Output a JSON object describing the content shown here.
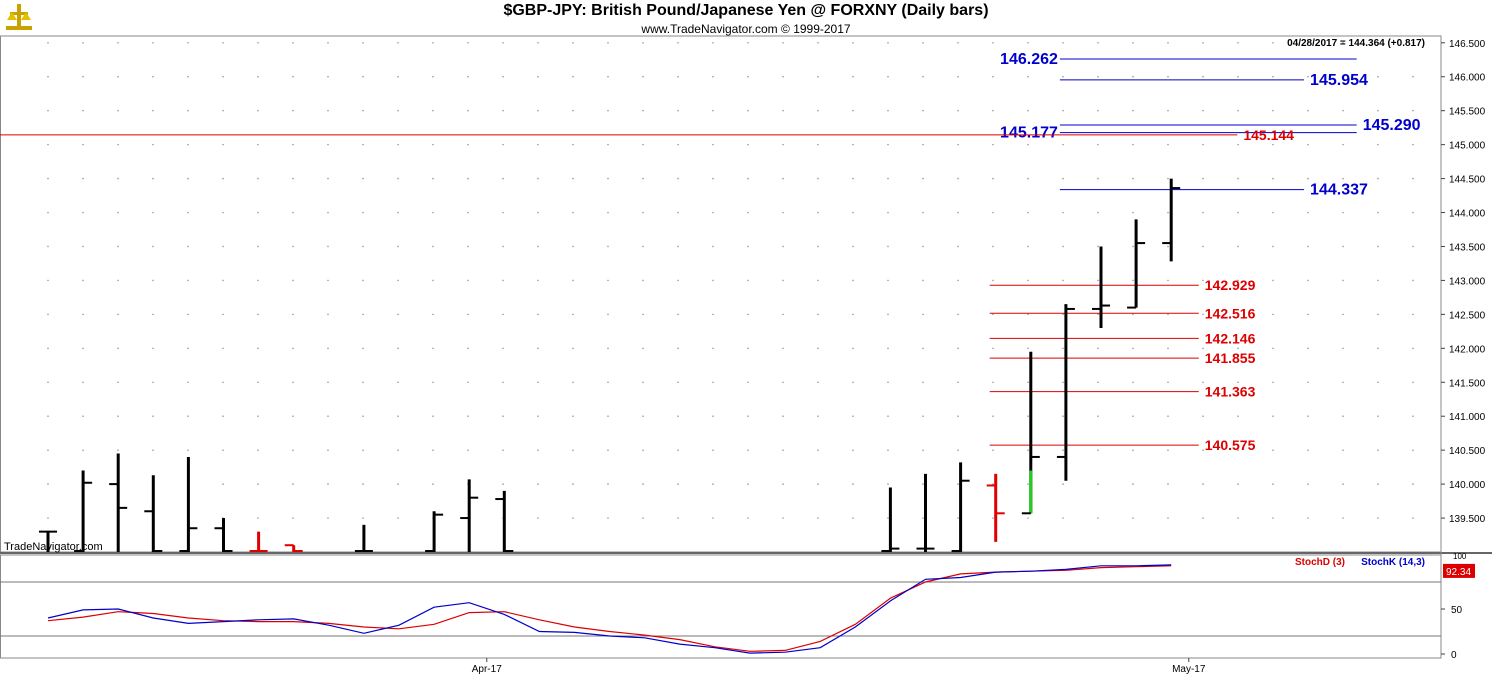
{
  "header": {
    "title": "$GBP-JPY:  British Pound/Japanese Yen @ FORXNY  (Daily bars)",
    "subtitle": "www.TradeNavigator.com © 1999-2017"
  },
  "watermark": "TradeNavigator.com",
  "last_quote": "04/28/2017 = 144.364 (+0.817)",
  "colors": {
    "bar": "#000000",
    "down_bar": "#e00000",
    "up_bar": "#22cc22",
    "resistance": "#0000cc",
    "support": "#dd0000",
    "stochD": "#dd0000",
    "stochK": "#0000cc"
  },
  "chart_data": [
    {
      "type": "ohlc",
      "title": "$GBP-JPY:  British Pound/Japanese Yen @ FORXNY  (Daily bars)",
      "ylim": [
        139.0,
        146.6
      ],
      "y_ticks": [
        "139.500",
        "140.000",
        "140.500",
        "141.000",
        "141.500",
        "142.000",
        "142.500",
        "143.000",
        "143.500",
        "144.000",
        "144.500",
        "145.000",
        "145.500",
        "146.000",
        "146.500"
      ],
      "x_ticks": [
        {
          "label": "Apr-17",
          "index": 12.5
        },
        {
          "label": "May-17",
          "index": 32.5
        }
      ],
      "bars": [
        {
          "i": 0,
          "o": 139.3,
          "h": 139.3,
          "l": 139.0,
          "c": 139.3,
          "color": "bar"
        },
        {
          "i": 1,
          "o": 139.0,
          "h": 140.2,
          "l": 139.0,
          "c": 140.02,
          "color": "bar"
        },
        {
          "i": 2,
          "o": 140.0,
          "h": 140.45,
          "l": 139.0,
          "c": 139.65,
          "color": "bar"
        },
        {
          "i": 3,
          "o": 139.6,
          "h": 140.13,
          "l": 139.0,
          "c": 139.0,
          "color": "bar"
        },
        {
          "i": 4,
          "o": 139.0,
          "h": 140.4,
          "l": 139.0,
          "c": 139.35,
          "color": "bar"
        },
        {
          "i": 5,
          "o": 139.35,
          "h": 139.5,
          "l": 139.0,
          "c": 139.0,
          "color": "bar"
        },
        {
          "i": 6,
          "o": 139.0,
          "h": 139.3,
          "l": 139.0,
          "c": 139.0,
          "color": "down_bar"
        },
        {
          "i": 7,
          "o": 139.1,
          "h": 139.1,
          "l": 139.0,
          "c": 139.0,
          "color": "down_bar"
        },
        {
          "i": 9,
          "o": 139.0,
          "h": 139.4,
          "l": 139.0,
          "c": 139.0,
          "color": "bar"
        },
        {
          "i": 11,
          "o": 139.0,
          "h": 139.6,
          "l": 139.0,
          "c": 139.55,
          "color": "bar"
        },
        {
          "i": 12,
          "o": 139.5,
          "h": 140.07,
          "l": 139.0,
          "c": 139.8,
          "color": "bar"
        },
        {
          "i": 13,
          "o": 139.78,
          "h": 139.9,
          "l": 139.0,
          "c": 139.0,
          "color": "bar"
        },
        {
          "i": 24,
          "o": 139.0,
          "h": 139.95,
          "l": 139.0,
          "c": 139.05,
          "color": "bar"
        },
        {
          "i": 25,
          "o": 139.05,
          "h": 140.15,
          "l": 139.0,
          "c": 139.05,
          "color": "bar"
        },
        {
          "i": 26,
          "o": 139.0,
          "h": 140.32,
          "l": 139.0,
          "c": 140.05,
          "color": "bar"
        },
        {
          "i": 27,
          "o": 139.98,
          "h": 140.15,
          "l": 139.15,
          "c": 139.57,
          "color": "down_bar"
        },
        {
          "i": 28,
          "o": 139.57,
          "h": 141.95,
          "l": 139.57,
          "c": 140.4,
          "color": "bar",
          "up_segment": [
            139.57,
            140.2
          ]
        },
        {
          "i": 29,
          "o": 140.4,
          "h": 142.65,
          "l": 140.05,
          "c": 142.58,
          "color": "bar"
        },
        {
          "i": 30,
          "o": 142.58,
          "h": 143.5,
          "l": 142.3,
          "c": 142.63,
          "color": "bar"
        },
        {
          "i": 31,
          "o": 142.6,
          "h": 143.9,
          "l": 142.6,
          "c": 143.55,
          "color": "bar"
        },
        {
          "i": 32,
          "o": 143.55,
          "h": 144.5,
          "l": 143.28,
          "c": 144.36,
          "color": "bar"
        }
      ],
      "levels": [
        {
          "value": 146.262,
          "label": "146.262",
          "color": "resistance",
          "label_side": "left",
          "from": 29,
          "to": 37
        },
        {
          "value": 145.954,
          "label": "145.954",
          "color": "resistance",
          "label_side": "right",
          "from": 29,
          "to": 35.5
        },
        {
          "value": 145.29,
          "label": "145.290",
          "color": "resistance",
          "label_side": "right",
          "from": 29,
          "to": 37
        },
        {
          "value": 145.177,
          "label": "145.177",
          "color": "resistance",
          "label_side": "left",
          "from": 29,
          "to": 37
        },
        {
          "value": 145.144,
          "label": "145.144",
          "color": "support",
          "label_side": "right",
          "from": -1,
          "to": 33.6
        },
        {
          "value": 144.337,
          "label": "144.337",
          "color": "resistance",
          "label_side": "right",
          "from": 29,
          "to": 35.5
        },
        {
          "value": 142.929,
          "label": "142.929",
          "color": "support",
          "label_side": "right",
          "from": 27,
          "to": 32.5
        },
        {
          "value": 142.516,
          "label": "142.516",
          "color": "support",
          "label_side": "right",
          "from": 27,
          "to": 32.5
        },
        {
          "value": 142.146,
          "label": "142.146",
          "color": "support",
          "label_side": "right",
          "from": 27,
          "to": 32.5
        },
        {
          "value": 141.855,
          "label": "141.855",
          "color": "support",
          "label_side": "right",
          "from": 27,
          "to": 32.5
        },
        {
          "value": 141.363,
          "label": "141.363",
          "color": "support",
          "label_side": "right",
          "from": 27,
          "to": 32.5
        },
        {
          "value": 140.575,
          "label": "140.575",
          "color": "support",
          "label_side": "right",
          "from": 27,
          "to": 32.5
        }
      ]
    },
    {
      "type": "line",
      "title": "Stochastic",
      "ylim": [
        0,
        100
      ],
      "y_ticks": [
        "0",
        "50",
        "100"
      ],
      "ref_lines": [
        20,
        80
      ],
      "series": [
        {
          "name": "StochD (3)",
          "color": "stochD",
          "x": [
            0,
            1,
            2,
            3,
            4,
            5,
            6,
            7,
            8,
            9,
            10,
            11,
            12,
            13,
            14,
            15,
            16,
            17,
            18,
            19,
            20,
            21,
            22,
            23,
            24,
            25,
            26,
            27,
            28,
            29,
            30,
            31,
            32
          ],
          "values": [
            37,
            41,
            47,
            45,
            40,
            37,
            36,
            36,
            34,
            30,
            28,
            33,
            46,
            47,
            38,
            30,
            25,
            21,
            16,
            8,
            3,
            4,
            14,
            33,
            62,
            80,
            89,
            91,
            92,
            93,
            96,
            97,
            98
          ]
        },
        {
          "name": "StochK (14,3)",
          "color": "stochK",
          "x": [
            0,
            1,
            2,
            3,
            4,
            5,
            6,
            7,
            8,
            9,
            10,
            11,
            12,
            13,
            14,
            15,
            16,
            17,
            18,
            19,
            20,
            21,
            22,
            23,
            24,
            25,
            26,
            27,
            28,
            29,
            30,
            31,
            32
          ],
          "values": [
            40,
            49,
            50,
            40,
            34,
            36,
            38,
            39,
            32,
            23,
            32,
            52,
            57,
            44,
            25,
            24,
            20,
            18,
            11,
            7,
            1,
            2,
            7,
            30,
            59,
            83,
            85,
            91,
            92,
            94,
            98,
            98,
            99
          ]
        }
      ],
      "last_value": "92.34"
    }
  ]
}
